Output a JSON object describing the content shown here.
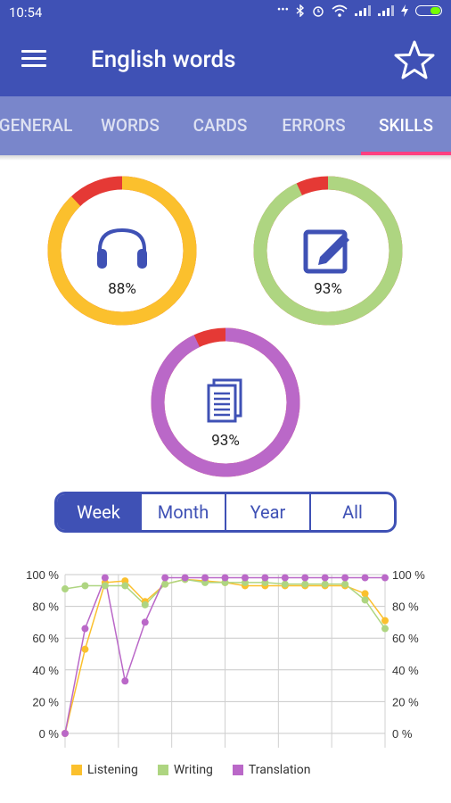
{
  "status_bar": {
    "time": "10:54",
    "dots": "•••"
  },
  "app_bar": {
    "title": "English words"
  },
  "tabs": [
    {
      "label": "GENERAL"
    },
    {
      "label": "WORDS"
    },
    {
      "label": "CARDS"
    },
    {
      "label": "ERRORS"
    },
    {
      "label": "SKILLS",
      "active": true
    }
  ],
  "skills": {
    "listening": {
      "percent_text": "88%",
      "value": 88,
      "color": "#fbc02d",
      "error_color": "#e53935"
    },
    "writing": {
      "percent_text": "93%",
      "value": 93,
      "color": "#aed581",
      "error_color": "#e53935"
    },
    "translation": {
      "percent_text": "93%",
      "value": 93,
      "color": "#ba68c8",
      "error_color": "#e53935"
    }
  },
  "period_selector": {
    "options": [
      "Week",
      "Month",
      "Year",
      "All"
    ],
    "selected": "Week"
  },
  "chart_data": {
    "type": "line",
    "x": [
      0,
      1,
      2,
      3,
      4,
      5,
      6,
      7,
      8,
      9,
      10,
      11,
      12,
      13,
      14,
      15,
      16
    ],
    "y_tick_labels": [
      "0 %",
      "20 %",
      "40 %",
      "60 %",
      "80 %",
      "100 %"
    ],
    "ylim": [
      0,
      100
    ],
    "grid": true,
    "legend_position": "bottom",
    "series": [
      {
        "name": "Listening",
        "color": "#fbc02d",
        "values": [
          0,
          53,
          95,
          96,
          83,
          94,
          97,
          96,
          95,
          93,
          93,
          93,
          93,
          93,
          93,
          88,
          71
        ]
      },
      {
        "name": "Writing",
        "color": "#aed581",
        "values": [
          91,
          93,
          93,
          93,
          81,
          94,
          97,
          95,
          95,
          95,
          95,
          94,
          94,
          94,
          94,
          84,
          66
        ]
      },
      {
        "name": "Translation",
        "color": "#ba68c8",
        "values": [
          0,
          66,
          98,
          33,
          70,
          98,
          98,
          98,
          98,
          98,
          98,
          98,
          98,
          98,
          98,
          98,
          98
        ]
      }
    ]
  }
}
